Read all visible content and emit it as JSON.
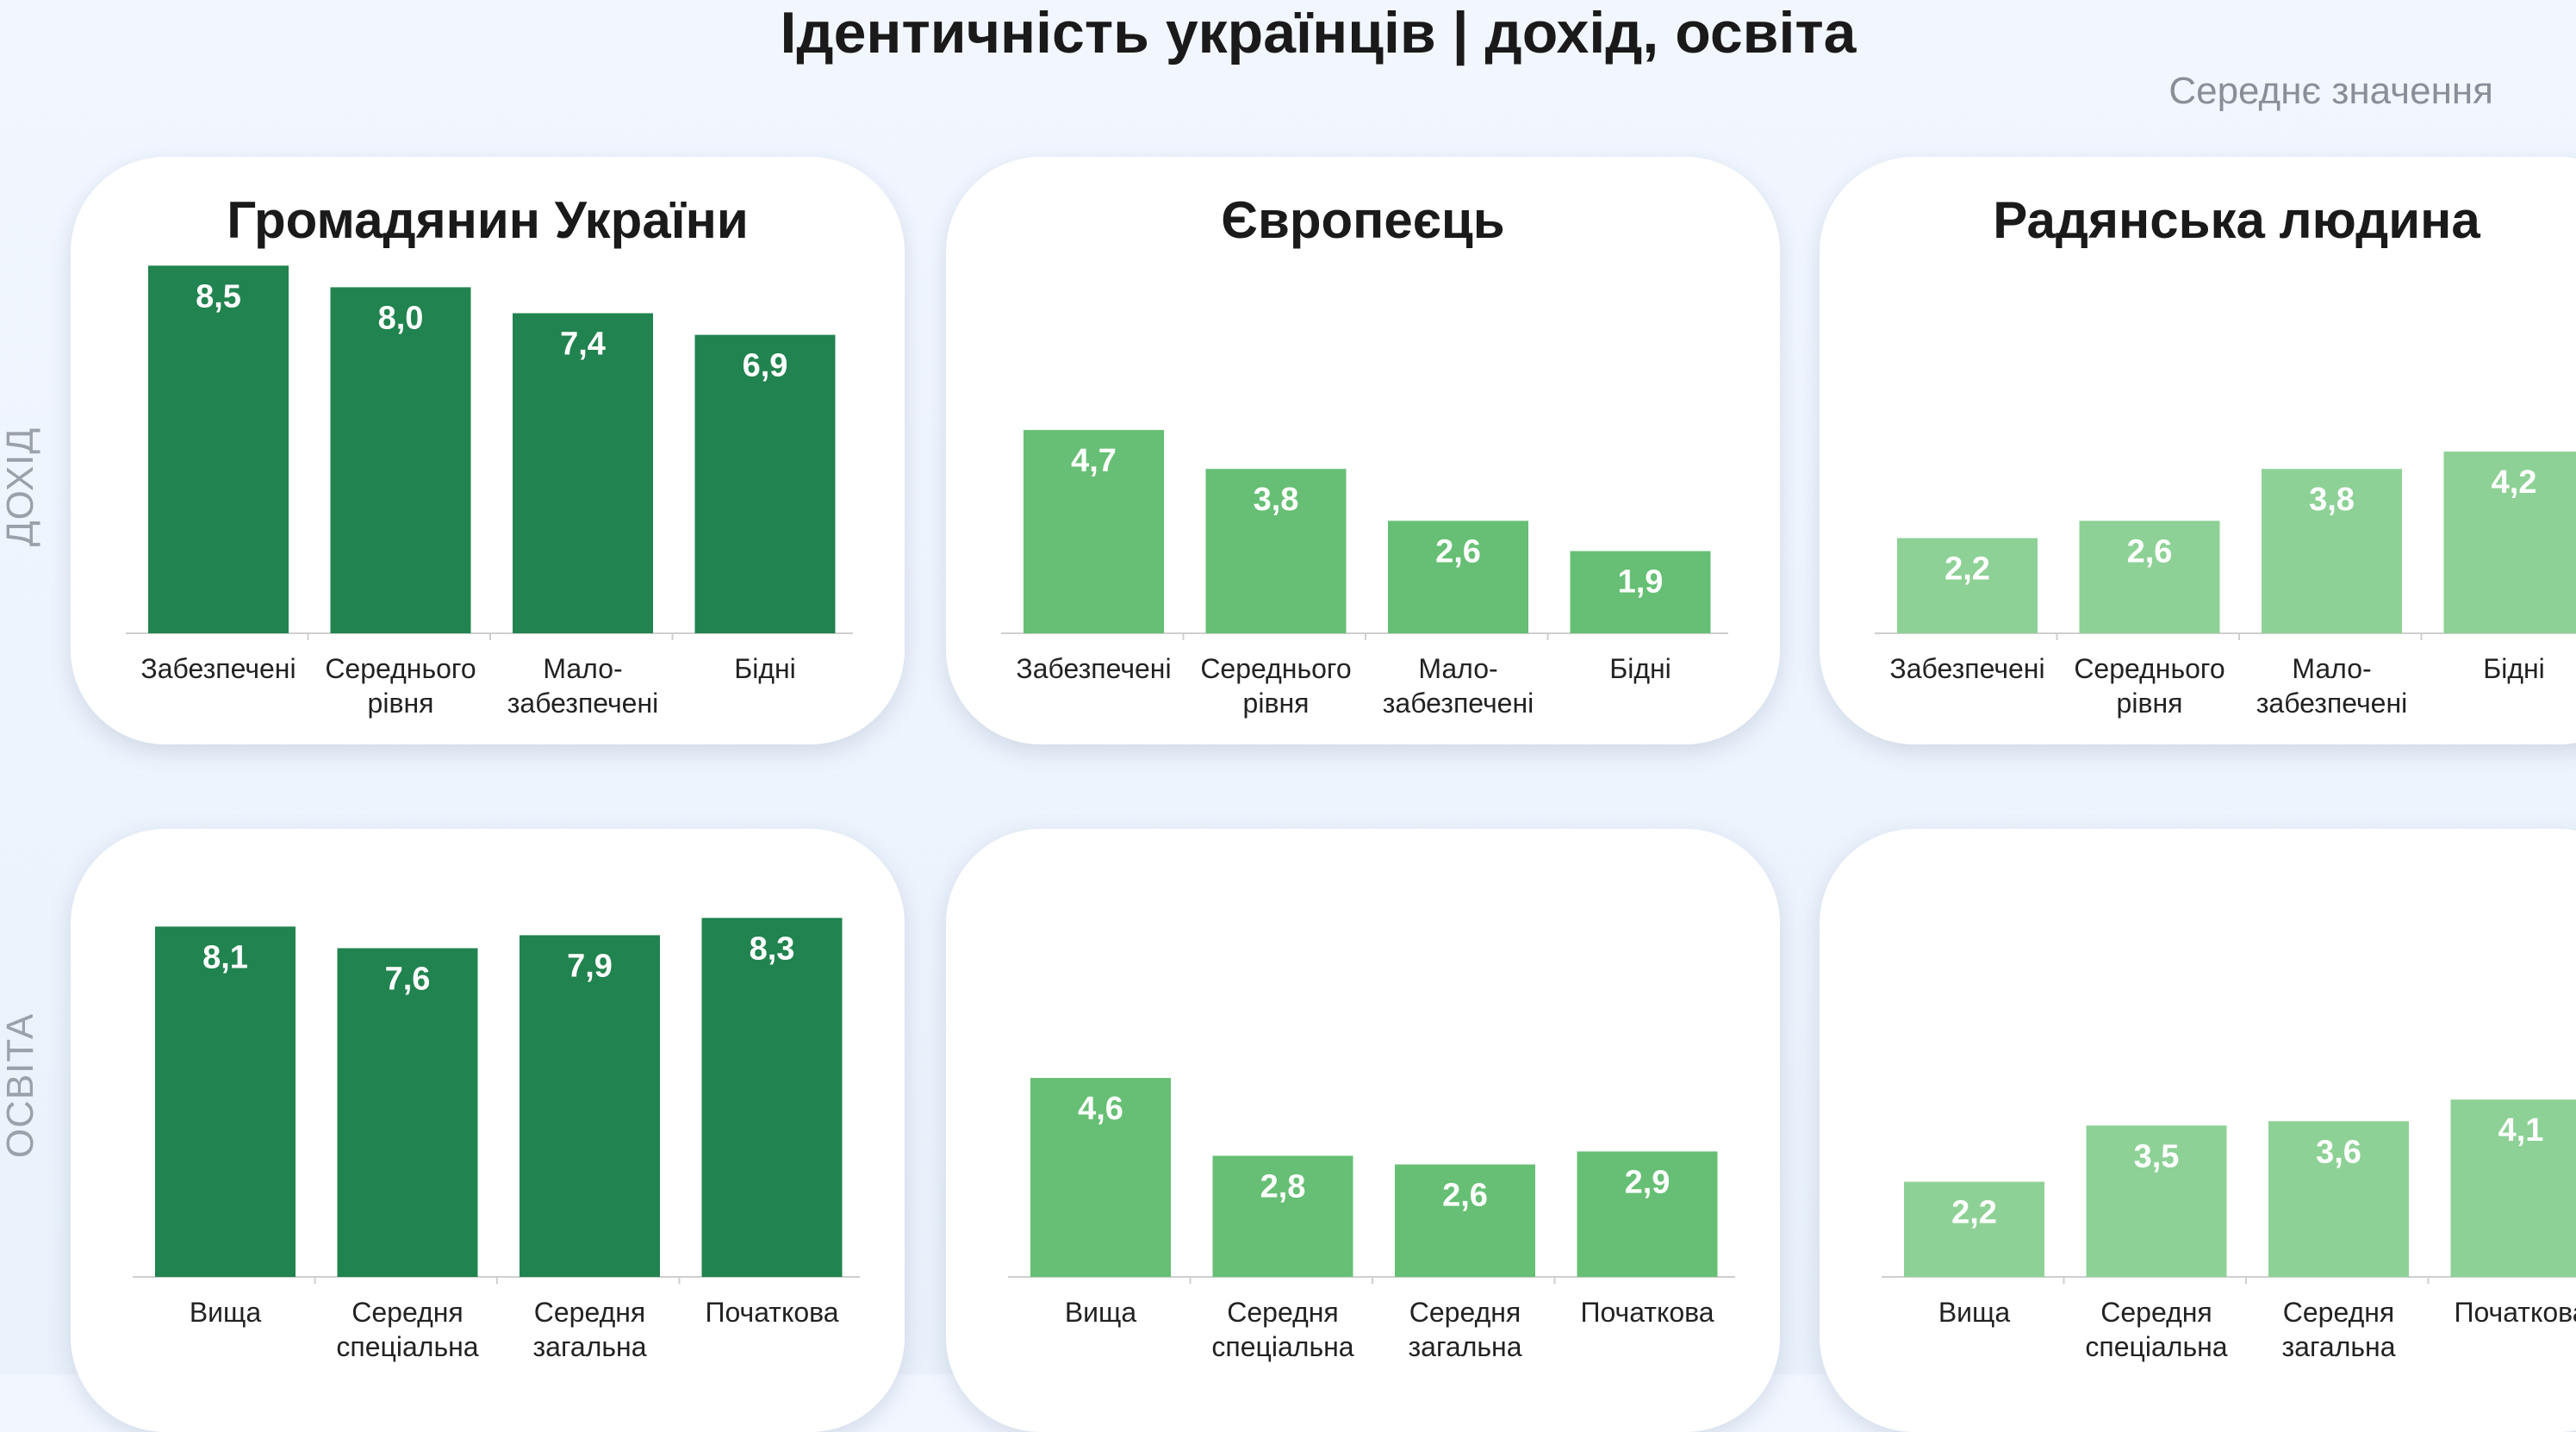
{
  "page": {
    "title": "Ідентичність українців | дохід, освіта",
    "subtitle": "Середнє значення"
  },
  "rows": [
    {
      "label": "ДОХІД"
    },
    {
      "label": "ОСВІТА"
    }
  ],
  "colors": {
    "dark": "#21834f",
    "medium": "#66bf74",
    "light": "#8ed196"
  },
  "chart_data": [
    {
      "type": "bar",
      "title": "Громадянин України",
      "row": "ДОХІД",
      "color": "#21834f",
      "categories": [
        [
          "Забезпечені"
        ],
        [
          "Середнього",
          "рівня"
        ],
        [
          "Мало-",
          "забезпечені"
        ],
        [
          "Бідні"
        ]
      ],
      "values": [
        8.5,
        8.0,
        7.4,
        6.9
      ],
      "labels": [
        "8,5",
        "8,0",
        "7,4",
        "6,9"
      ],
      "ylim": [
        0,
        8.8
      ]
    },
    {
      "type": "bar",
      "title": "Європеєць",
      "row": "ДОХІД",
      "color": "#66bf74",
      "categories": [
        [
          "Забезпечені"
        ],
        [
          "Середнього",
          "рівня"
        ],
        [
          "Мало-",
          "забезпечені"
        ],
        [
          "Бідні"
        ]
      ],
      "values": [
        4.7,
        3.8,
        2.6,
        1.9
      ],
      "labels": [
        "4,7",
        "3,8",
        "2,6",
        "1,9"
      ],
      "ylim": [
        0,
        8.8
      ]
    },
    {
      "type": "bar",
      "title": "Радянська людина",
      "row": "ДОХІД",
      "color": "#8ed196",
      "categories": [
        [
          "Забезпечені"
        ],
        [
          "Середнього",
          "рівня"
        ],
        [
          "Мало-",
          "забезпечені"
        ],
        [
          "Бідні"
        ]
      ],
      "values": [
        2.2,
        2.6,
        3.8,
        4.2
      ],
      "labels": [
        "2,2",
        "2,6",
        "3,8",
        "4,2"
      ],
      "ylim": [
        0,
        8.8
      ]
    },
    {
      "type": "bar",
      "title": "",
      "row": "ОСВІТА",
      "color": "#21834f",
      "categories": [
        [
          "Вища"
        ],
        [
          "Середня",
          "спеціальна"
        ],
        [
          "Середня",
          "загальна"
        ],
        [
          "Початкова"
        ]
      ],
      "values": [
        8.1,
        7.6,
        7.9,
        8.3
      ],
      "labels": [
        "8,1",
        "7,6",
        "7,9",
        "8,3"
      ],
      "ylim": [
        0,
        8.8
      ]
    },
    {
      "type": "bar",
      "title": "",
      "row": "ОСВІТА",
      "color": "#66bf74",
      "categories": [
        [
          "Вища"
        ],
        [
          "Середня",
          "спеціальна"
        ],
        [
          "Середня",
          "загальна"
        ],
        [
          "Початкова"
        ]
      ],
      "values": [
        4.6,
        2.8,
        2.6,
        2.9
      ],
      "labels": [
        "4,6",
        "2,8",
        "2,6",
        "2,9"
      ],
      "ylim": [
        0,
        8.8
      ]
    },
    {
      "type": "bar",
      "title": "",
      "row": "ОСВІТА",
      "color": "#8ed196",
      "categories": [
        [
          "Вища"
        ],
        [
          "Середня",
          "спеціальна"
        ],
        [
          "Середня",
          "загальна"
        ],
        [
          "Початкова"
        ]
      ],
      "values": [
        2.2,
        3.5,
        3.6,
        4.1
      ],
      "labels": [
        "2,2",
        "3,5",
        "3,6",
        "4,1"
      ],
      "ylim": [
        0,
        8.8
      ]
    }
  ]
}
